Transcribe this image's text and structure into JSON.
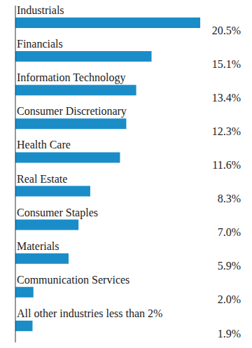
{
  "chart_data": {
    "type": "bar",
    "orientation": "horizontal",
    "categories": [
      "Industrials",
      "Financials",
      "Information Technology",
      "Consumer Discretionary",
      "Health Care",
      "Real Estate",
      "Consumer Staples",
      "Materials",
      "Communication Services",
      "All other industries less than 2%"
    ],
    "values": [
      20.5,
      15.1,
      13.4,
      12.3,
      11.6,
      8.3,
      7.0,
      5.9,
      2.0,
      1.9
    ],
    "value_labels": [
      "20.5%",
      "15.1%",
      "13.4%",
      "12.3%",
      "11.6%",
      "8.3%",
      "7.0%",
      "5.9%",
      "2.0%",
      "1.9%"
    ],
    "color": "#1a8dc8",
    "xlim": [
      0,
      25
    ],
    "data_labels": true,
    "tick_labels": false,
    "grid": false
  }
}
